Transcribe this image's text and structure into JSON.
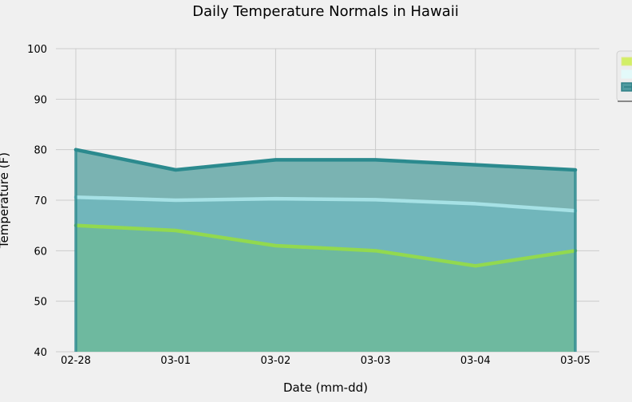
{
  "chart_data": {
    "type": "area",
    "title": "Daily Temperature Normals in Hawaii",
    "xlabel": "Date (mm-dd)",
    "ylabel": "Temperature (F)",
    "x": [
      "02-28",
      "03-01",
      "03-02",
      "03-03",
      "03-04",
      "03-05"
    ],
    "ylim": [
      40,
      100
    ],
    "yticks": [
      40,
      50,
      60,
      70,
      80,
      90,
      100
    ],
    "grid": true,
    "stacked": false,
    "legend_position": "upper right (clipped at edge)",
    "series": [
      {
        "values": [
          80,
          76,
          78,
          78,
          77,
          76
        ],
        "color": "#2b8a8e",
        "fill": "#7ab3b2"
      },
      {
        "values": [
          70.6,
          70.0,
          70.3,
          70.1,
          69.3,
          67.9
        ],
        "color": "#a6e1e5",
        "fill": "#71b6bb"
      },
      {
        "values": [
          65,
          64,
          61,
          60,
          57,
          60
        ],
        "color": "#92d94f",
        "fill": "#6eb99f"
      }
    ],
    "legend_swatches": [
      "#d2ef66",
      "#e3fafa",
      "#4f9aa0"
    ]
  }
}
